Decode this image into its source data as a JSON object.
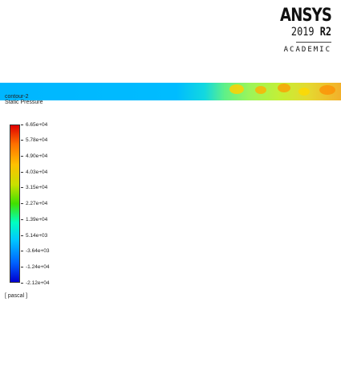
{
  "logo": {
    "brand": "ANSYS",
    "year": "2019",
    "release": "R2",
    "edition": "ACADEMIC"
  },
  "plot": {
    "name": "contour-2",
    "variable": "Static Pressure"
  },
  "colorbar": {
    "labels": [
      "6.65e+04",
      "5.78e+04",
      "4.90e+04",
      "4.03e+04",
      "3.15e+04",
      "2.27e+04",
      "1.39e+04",
      "5.14e+03",
      "-3.64e+03",
      "-1.24e+04",
      "-2.12e+04"
    ],
    "units": "[ pascal ]"
  }
}
